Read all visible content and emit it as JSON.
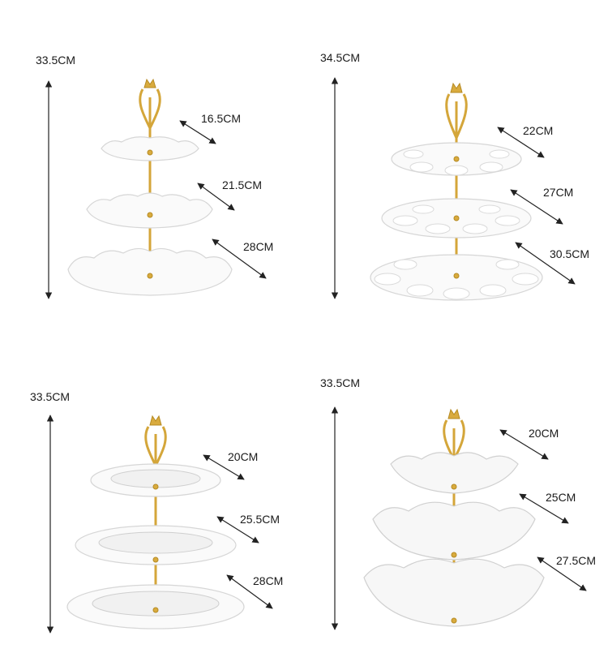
{
  "products": [
    {
      "name": "lace-plate-stand",
      "height_label": "33.5CM",
      "tier_labels": [
        "16.5CM",
        "21.5CM",
        "28CM"
      ]
    },
    {
      "name": "flower-compartment-stand",
      "height_label": "34.5CM",
      "tier_labels": [
        "22CM",
        "27CM",
        "30.5CM"
      ]
    },
    {
      "name": "scalloped-plate-stand",
      "height_label": "33.5CM",
      "tier_labels": [
        "20CM",
        "25.5CM",
        "28CM"
      ]
    },
    {
      "name": "petal-bowl-stand",
      "height_label": "33.5CM",
      "tier_labels": [
        "20CM",
        "25CM",
        "27.5CM"
      ]
    }
  ],
  "colors": {
    "background": "#ffffff",
    "porcelain": "#fafafa",
    "gold_fitting": "#d4a63a",
    "dimension_line": "#222222"
  }
}
